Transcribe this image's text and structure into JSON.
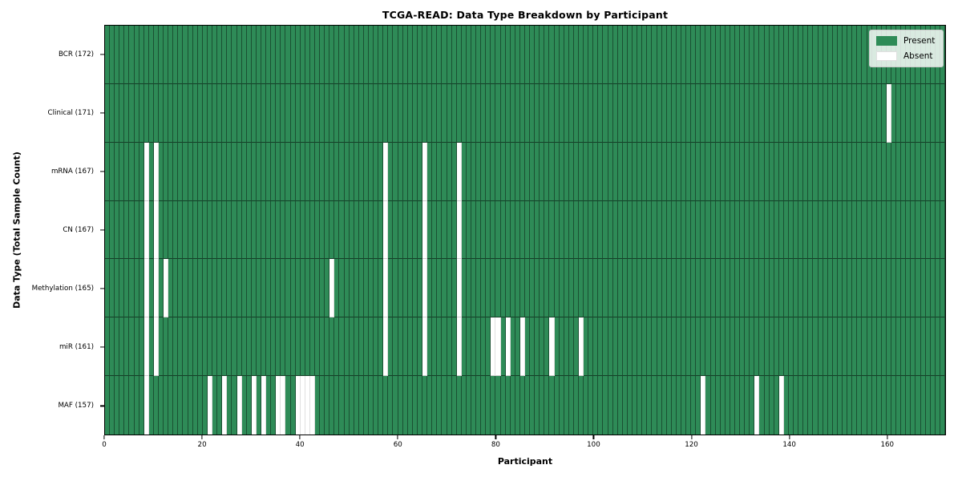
{
  "chart_data": {
    "type": "heatmap",
    "title": "TCGA-READ: Data Type Breakdown by Participant",
    "xlabel": "Participant",
    "ylabel": "Data Type (Total Sample Count)",
    "n_participants": 172,
    "x_ticks": [
      0,
      20,
      40,
      60,
      80,
      100,
      120,
      140,
      160
    ],
    "legend": [
      "Present",
      "Absent"
    ],
    "legend_position": "upper right",
    "grid": "cell-edges",
    "colors": {
      "present": "#2e8b57",
      "absent": "#ffffff"
    },
    "rows": [
      {
        "data_type": "BCR",
        "label": "BCR (172)",
        "present_count": 172,
        "absent_participants": []
      },
      {
        "data_type": "Clinical",
        "label": "Clinical (171)",
        "present_count": 171,
        "absent_participants": [
          160
        ]
      },
      {
        "data_type": "mRNA",
        "label": "mRNA (167)",
        "present_count": 167,
        "absent_participants": [
          8,
          10,
          57,
          65,
          72
        ]
      },
      {
        "data_type": "CN",
        "label": "CN (167)",
        "present_count": 167,
        "absent_participants": [
          8,
          10,
          57,
          65,
          72
        ]
      },
      {
        "data_type": "Methylation",
        "label": "Methylation (165)",
        "present_count": 165,
        "absent_participants": [
          8,
          10,
          12,
          46,
          57,
          65,
          72
        ]
      },
      {
        "data_type": "miR",
        "label": "miR (161)",
        "present_count": 161,
        "absent_participants": [
          8,
          10,
          57,
          65,
          72,
          79,
          80,
          82,
          85,
          91,
          97
        ]
      },
      {
        "data_type": "MAF",
        "label": "MAF (157)",
        "present_count": 157,
        "absent_participants": [
          8,
          21,
          24,
          27,
          30,
          32,
          35,
          36,
          39,
          40,
          41,
          42,
          122,
          133,
          138
        ]
      }
    ]
  }
}
